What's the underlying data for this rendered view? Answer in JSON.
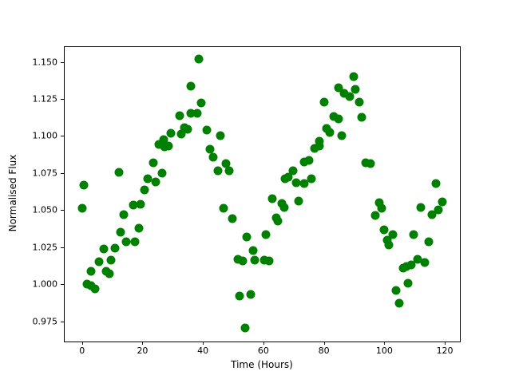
{
  "chart_data": {
    "type": "scatter",
    "title": "",
    "xlabel": "Time (Hours)",
    "ylabel": "Normalised Flux",
    "marker_color": "#008000",
    "marker_diameter_px": 11,
    "grid": false,
    "legend": null,
    "xlim": [
      -6,
      125
    ],
    "ylim": [
      0.9615,
      1.1605
    ],
    "xticks": [
      {
        "value": 0,
        "label": "0"
      },
      {
        "value": 20,
        "label": "20"
      },
      {
        "value": 40,
        "label": "40"
      },
      {
        "value": 60,
        "label": "60"
      },
      {
        "value": 80,
        "label": "80"
      },
      {
        "value": 100,
        "label": "100"
      },
      {
        "value": 120,
        "label": "120"
      }
    ],
    "yticks": [
      {
        "value": 0.975,
        "label": "0.975"
      },
      {
        "value": 1.0,
        "label": "1.000"
      },
      {
        "value": 1.025,
        "label": "1.025"
      },
      {
        "value": 1.05,
        "label": "1.050"
      },
      {
        "value": 1.075,
        "label": "1.075"
      },
      {
        "value": 1.1,
        "label": "1.100"
      },
      {
        "value": 1.125,
        "label": "1.125"
      },
      {
        "value": 1.15,
        "label": "1.150"
      }
    ],
    "points": [
      [
        0.0,
        1.0513
      ],
      [
        0.7,
        1.067
      ],
      [
        1.6,
        1.0
      ],
      [
        2.9,
        1.009
      ],
      [
        3.0,
        0.9989
      ],
      [
        4.4,
        0.9968
      ],
      [
        5.7,
        1.0152
      ],
      [
        7.1,
        1.0238
      ],
      [
        7.9,
        1.009
      ],
      [
        9.0,
        1.0072
      ],
      [
        9.5,
        1.0166
      ],
      [
        10.8,
        1.0245
      ],
      [
        12.1,
        1.0755
      ],
      [
        12.8,
        1.0353
      ],
      [
        13.9,
        1.0469
      ],
      [
        14.7,
        1.0288
      ],
      [
        16.9,
        1.0535
      ],
      [
        17.6,
        1.0285
      ],
      [
        18.8,
        1.0379
      ],
      [
        19.4,
        1.054
      ],
      [
        20.7,
        1.0635
      ],
      [
        21.8,
        1.0713
      ],
      [
        23.5,
        1.0821
      ],
      [
        24.3,
        1.0692
      ],
      [
        25.3,
        1.0942
      ],
      [
        26.5,
        1.0749
      ],
      [
        27.0,
        1.0975
      ],
      [
        27.2,
        1.0926
      ],
      [
        28.7,
        1.0935
      ],
      [
        29.3,
        1.1019
      ],
      [
        32.3,
        1.1135
      ],
      [
        32.9,
        1.1014
      ],
      [
        33.8,
        1.1055
      ],
      [
        34.9,
        1.1043
      ],
      [
        36.0,
        1.1151
      ],
      [
        36.0,
        1.1335
      ],
      [
        38.0,
        1.1151
      ],
      [
        38.7,
        1.152
      ],
      [
        39.4,
        1.1221
      ],
      [
        41.2,
        1.1039
      ],
      [
        42.3,
        1.091
      ],
      [
        43.5,
        1.0857
      ],
      [
        45.1,
        1.0764
      ],
      [
        45.8,
        1.1003
      ],
      [
        46.9,
        1.0513
      ],
      [
        47.6,
        1.0817
      ],
      [
        48.6,
        1.0764
      ],
      [
        49.7,
        1.0445
      ],
      [
        51.5,
        1.017
      ],
      [
        52.0,
        0.9924
      ],
      [
        53.2,
        1.0156
      ],
      [
        53.9,
        0.9709
      ],
      [
        54.6,
        1.032
      ],
      [
        55.7,
        0.9934
      ],
      [
        56.6,
        1.0228
      ],
      [
        57.0,
        1.0165
      ],
      [
        60.2,
        1.0165
      ],
      [
        60.7,
        1.0338
      ],
      [
        62.0,
        1.016
      ],
      [
        62.9,
        1.0579
      ],
      [
        64.2,
        1.0451
      ],
      [
        64.9,
        1.0428
      ],
      [
        66.0,
        1.0546
      ],
      [
        66.9,
        1.0519
      ],
      [
        67.1,
        1.071
      ],
      [
        68.2,
        1.0724
      ],
      [
        69.8,
        1.0764
      ],
      [
        70.8,
        1.0683
      ],
      [
        71.6,
        1.0562
      ],
      [
        73.5,
        1.0826
      ],
      [
        73.5,
        1.0678
      ],
      [
        75.1,
        1.0835
      ],
      [
        76.0,
        1.0713
      ],
      [
        76.9,
        1.0916
      ],
      [
        78.4,
        1.0933
      ],
      [
        78.6,
        1.0964
      ],
      [
        80.0,
        1.1228
      ],
      [
        80.8,
        1.1053
      ],
      [
        81.9,
        1.1025
      ],
      [
        83.3,
        1.113
      ],
      [
        84.9,
        1.1117
      ],
      [
        84.9,
        1.1328
      ],
      [
        85.8,
        1.1004
      ],
      [
        86.6,
        1.1287
      ],
      [
        88.6,
        1.1268
      ],
      [
        89.8,
        1.14
      ],
      [
        90.5,
        1.1317
      ],
      [
        91.6,
        1.1227
      ],
      [
        92.4,
        1.1125
      ],
      [
        93.8,
        1.0821
      ],
      [
        95.5,
        1.0817
      ],
      [
        97.0,
        1.0463
      ],
      [
        98.2,
        1.0552
      ],
      [
        99.1,
        1.0513
      ],
      [
        99.9,
        1.037
      ],
      [
        101.0,
        1.0299
      ],
      [
        101.4,
        1.0267
      ],
      [
        102.9,
        1.0335
      ],
      [
        103.9,
        0.996
      ],
      [
        104.8,
        0.9875
      ],
      [
        106.2,
        1.0108
      ],
      [
        107.3,
        1.012
      ],
      [
        107.9,
        1.0006
      ],
      [
        108.8,
        1.0131
      ],
      [
        109.8,
        1.0338
      ],
      [
        111.1,
        1.0167
      ],
      [
        112.0,
        1.0518
      ],
      [
        113.3,
        1.0149
      ],
      [
        114.6,
        1.0288
      ],
      [
        115.8,
        1.0469
      ],
      [
        117.1,
        1.0678
      ],
      [
        117.9,
        1.0504
      ],
      [
        119.1,
        1.0557
      ]
    ]
  }
}
